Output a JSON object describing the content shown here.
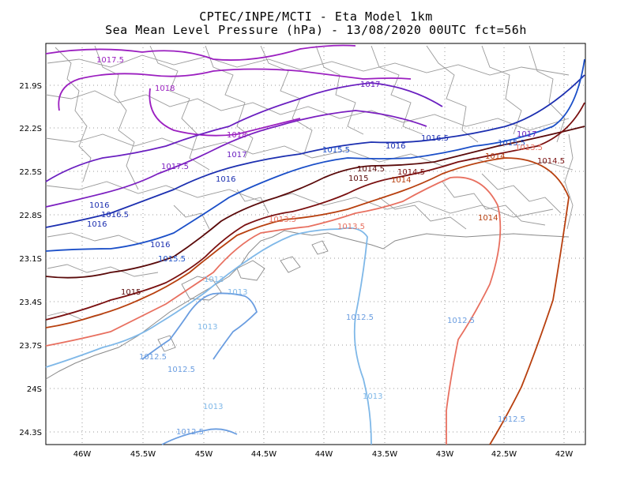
{
  "title_line1": "CPTEC/INPE/MCTI -  Eta Model 1km",
  "title_line2": "Sea Mean Level Pressure (hPa) - 13/08/2020 00UTC fct=56h",
  "y_ticks": [
    "21.9S",
    "22.2S",
    "22.5S",
    "22.8S",
    "23.1S",
    "23.4S",
    "23.7S",
    "24S",
    "24.3S"
  ],
  "x_ticks": [
    "46W",
    "45.5W",
    "45W",
    "44.5W",
    "44W",
    "43.5W",
    "43W",
    "42.5W",
    "42W"
  ],
  "contour_labels": [
    {
      "text": "1017.5",
      "color": "#9b1fc0"
    },
    {
      "text": "1018",
      "color": "#9b1fc0"
    },
    {
      "text": "1017",
      "color": "#6a1fc0"
    },
    {
      "text": "1018",
      "color": "#9b1fc0"
    },
    {
      "text": "1017",
      "color": "#6a1fc0"
    },
    {
      "text": "1017.5",
      "color": "#7b1fc0"
    },
    {
      "text": "1016",
      "color": "#1c2fb0"
    },
    {
      "text": "1015.5",
      "color": "#1b4fc8"
    },
    {
      "text": "1016.5",
      "color": "#1c2fb0"
    },
    {
      "text": "1016",
      "color": "#1c2fb0"
    },
    {
      "text": "1016.5",
      "color": "#1c2fb0"
    },
    {
      "text": "1016",
      "color": "#1c2fb0"
    },
    {
      "text": "1016",
      "color": "#1c2fb0"
    },
    {
      "text": "1017",
      "color": "#6a1fc0"
    },
    {
      "text": "1015.5",
      "color": "#1b4fc8"
    },
    {
      "text": "1016",
      "color": "#1c2fb0"
    },
    {
      "text": "1015.5",
      "color": "#1b4fc8"
    },
    {
      "text": "1015",
      "color": "#5a0a0a"
    },
    {
      "text": "1014.5",
      "color": "#5a0a0a"
    },
    {
      "text": "1015",
      "color": "#5a0a0a"
    },
    {
      "text": "1014.5",
      "color": "#7a1010"
    },
    {
      "text": "1014",
      "color": "#b8400f"
    },
    {
      "text": "1013.5",
      "color": "#e87060"
    },
    {
      "text": "1014",
      "color": "#b8400f"
    },
    {
      "text": "1014.5",
      "color": "#7a1010"
    },
    {
      "text": "1014",
      "color": "#b8400f"
    },
    {
      "text": "1013.5",
      "color": "#e87060"
    },
    {
      "text": "1013",
      "color": "#7fb8e8"
    },
    {
      "text": "1013",
      "color": "#7fb8e8"
    },
    {
      "text": "1012.5",
      "color": "#6a9de0"
    },
    {
      "text": "1013",
      "color": "#7fb8e8"
    },
    {
      "text": "1013",
      "color": "#7fb8e8"
    },
    {
      "text": "1012.5",
      "color": "#6a9de0"
    },
    {
      "text": "1012.5",
      "color": "#6a9de0"
    },
    {
      "text": "1012.5",
      "color": "#6a9de0"
    },
    {
      "text": "1013.5",
      "color": "#e87060"
    },
    {
      "text": "1013",
      "color": "#7fb8e8"
    },
    {
      "text": "1012.5",
      "color": "#6a9de0"
    },
    {
      "text": "1012.5",
      "color": "#6a9de0"
    },
    {
      "text": "1014",
      "color": "#b8400f"
    }
  ]
}
